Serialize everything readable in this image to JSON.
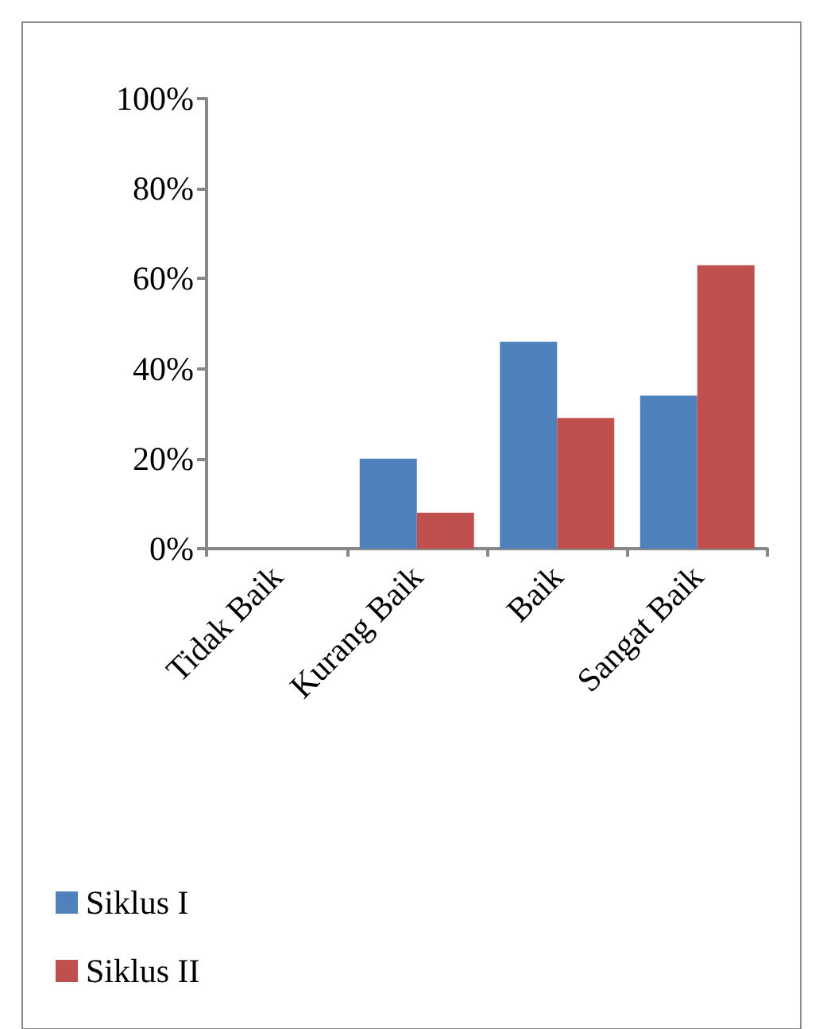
{
  "chart_data": {
    "type": "bar",
    "categories": [
      "Tidak Baik",
      "Kurang Baik",
      "Baik",
      "Sangat Baik"
    ],
    "series": [
      {
        "name": "Siklus I",
        "color": "#4f81bd",
        "values": [
          0,
          20,
          46,
          34
        ]
      },
      {
        "name": "Siklus II",
        "color": "#c0504d",
        "values": [
          0,
          8,
          29,
          63
        ]
      }
    ],
    "ylim": [
      0,
      100
    ],
    "yticks": [
      {
        "value": 0,
        "label": "0%"
      },
      {
        "value": 20,
        "label": "20%"
      },
      {
        "value": 40,
        "label": "40%"
      },
      {
        "value": 60,
        "label": "60%"
      },
      {
        "value": 80,
        "label": "80%"
      },
      {
        "value": 100,
        "label": "100%"
      }
    ],
    "grid": false,
    "legend": "bottom left"
  }
}
